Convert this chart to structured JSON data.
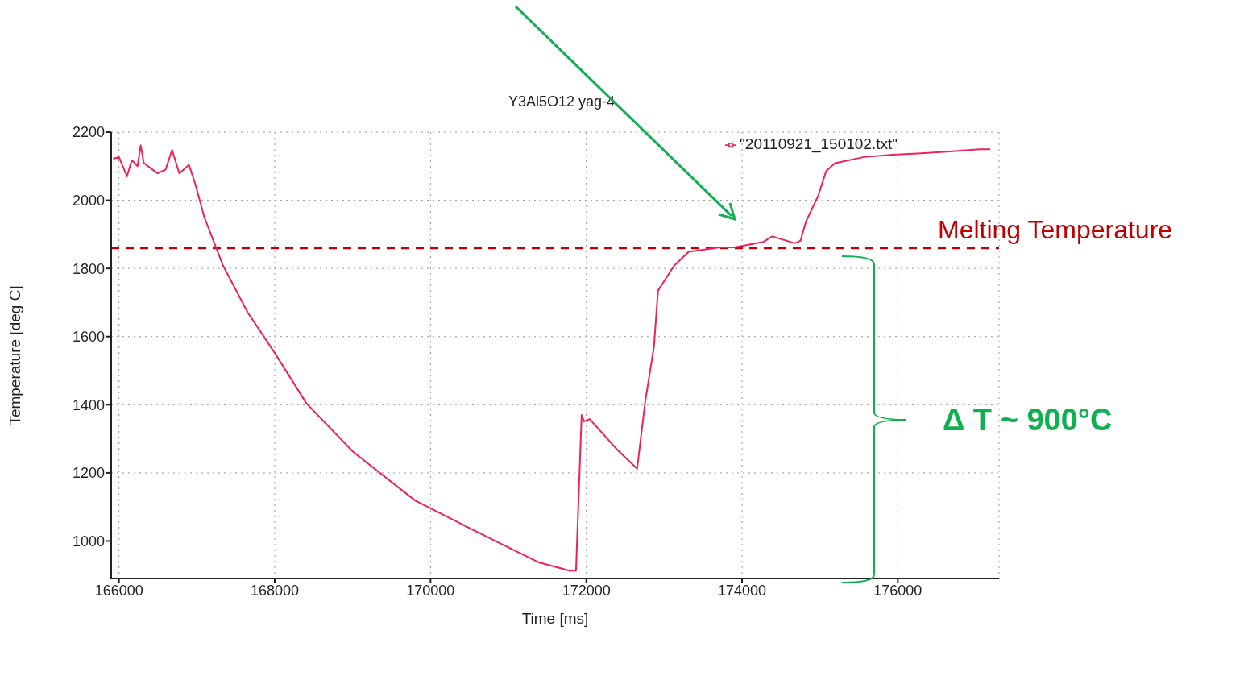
{
  "chart_data": {
    "type": "line",
    "title": "Y3Al5O12 yag-4",
    "xlabel": "Time [ms]",
    "ylabel": "Temperature [deg C]",
    "x": [
      165924,
      166000,
      166103,
      166165,
      166238,
      166279,
      166320,
      166496,
      166599,
      166682,
      166775,
      166899,
      166981,
      167095,
      167333,
      167653,
      168014,
      168407,
      169006,
      169801,
      170597,
      171382,
      171785,
      171868,
      171940,
      171971,
      172043,
      172394,
      172653,
      172756,
      172869,
      172921,
      173128,
      173314,
      173717,
      173903,
      174274,
      174388,
      174677,
      174750,
      174822,
      174977,
      175080,
      175194,
      175566,
      175937,
      176299,
      176671,
      177043,
      177187
    ],
    "series": [
      {
        "name": "\"20110921_150102.txt\"",
        "color": "#f0205a",
        "values": [
          2122,
          2127,
          2070,
          2118,
          2100,
          2161,
          2109,
          2079,
          2090,
          2148,
          2079,
          2104,
          2047,
          1951,
          1810,
          1671,
          1547,
          1404,
          1262,
          1119,
          1027,
          938,
          913,
          913,
          1370,
          1351,
          1358,
          1269,
          1212,
          1408,
          1570,
          1735,
          1808,
          1849,
          1862,
          1862,
          1878,
          1894,
          1874,
          1881,
          1938,
          2013,
          2086,
          2109,
          2127,
          2134,
          2138,
          2143,
          2150,
          2150
        ]
      }
    ],
    "xlim": [
      165900,
      177300
    ],
    "ylim": [
      890,
      2200
    ],
    "xticks": [
      166000,
      168000,
      170000,
      172000,
      174000,
      176000
    ],
    "yticks": [
      1000,
      1200,
      1400,
      1600,
      1800,
      2000,
      2200
    ],
    "grid": true,
    "legend": "top right",
    "marker": "none",
    "line_style": "solid",
    "ref_lines": [
      {
        "axis": "y",
        "value": 1860,
        "label": "Melting Temperature",
        "color": "#c00000",
        "line_style": "dashed"
      }
    ],
    "annotations": [
      "Δ T ~ 900°C"
    ]
  }
}
